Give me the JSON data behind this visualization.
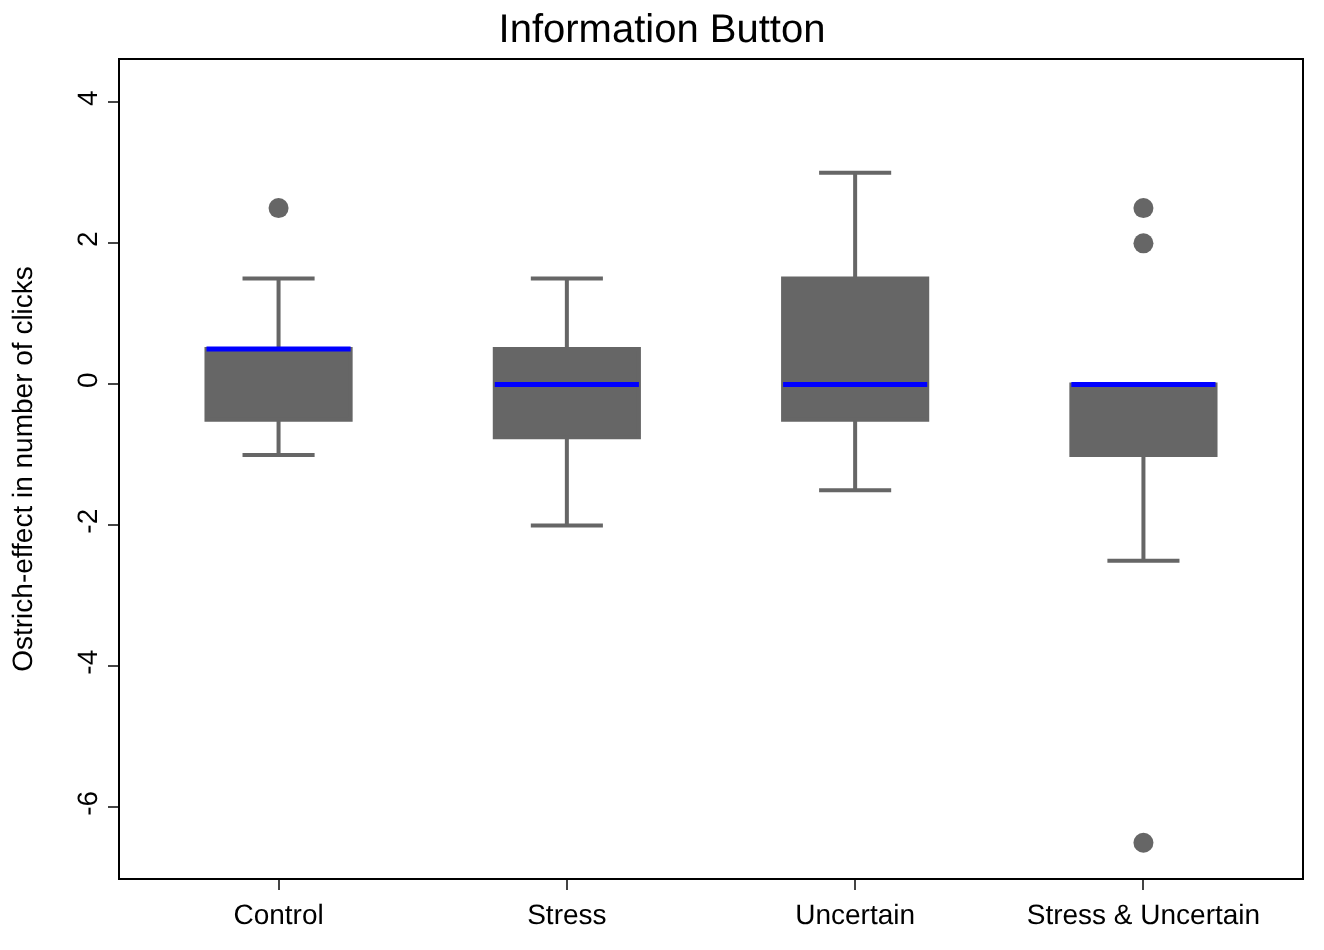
{
  "chart_data": {
    "type": "box",
    "title": "Information Button",
    "ylabel": "Ostrich-effect in number of clicks",
    "categories": [
      "Control",
      "Stress",
      "Uncertain",
      "Stress & Uncertain"
    ],
    "series": [
      {
        "color": "#666666",
        "boxes": [
          {
            "low": -1,
            "q1": -0.5,
            "median": 0.5,
            "q3": 0.5,
            "high": 1.5,
            "outliers": [
              2.5
            ]
          },
          {
            "low": -2,
            "q1": -0.75,
            "median": 0,
            "q3": 0.5,
            "high": 1.5
          },
          {
            "low": -1.5,
            "q1": -0.5,
            "median": 0,
            "q3": 1.5,
            "high": 3
          },
          {
            "low": -2.5,
            "q1": -1,
            "median": 0,
            "q3": 0,
            "high": 0,
            "outliers": [
              2.5,
              2,
              -6.5
            ]
          }
        ]
      }
    ],
    "ylim": [
      -7,
      4.6
    ],
    "yticks": [
      -6,
      -4,
      -2,
      0,
      2,
      4
    ]
  }
}
